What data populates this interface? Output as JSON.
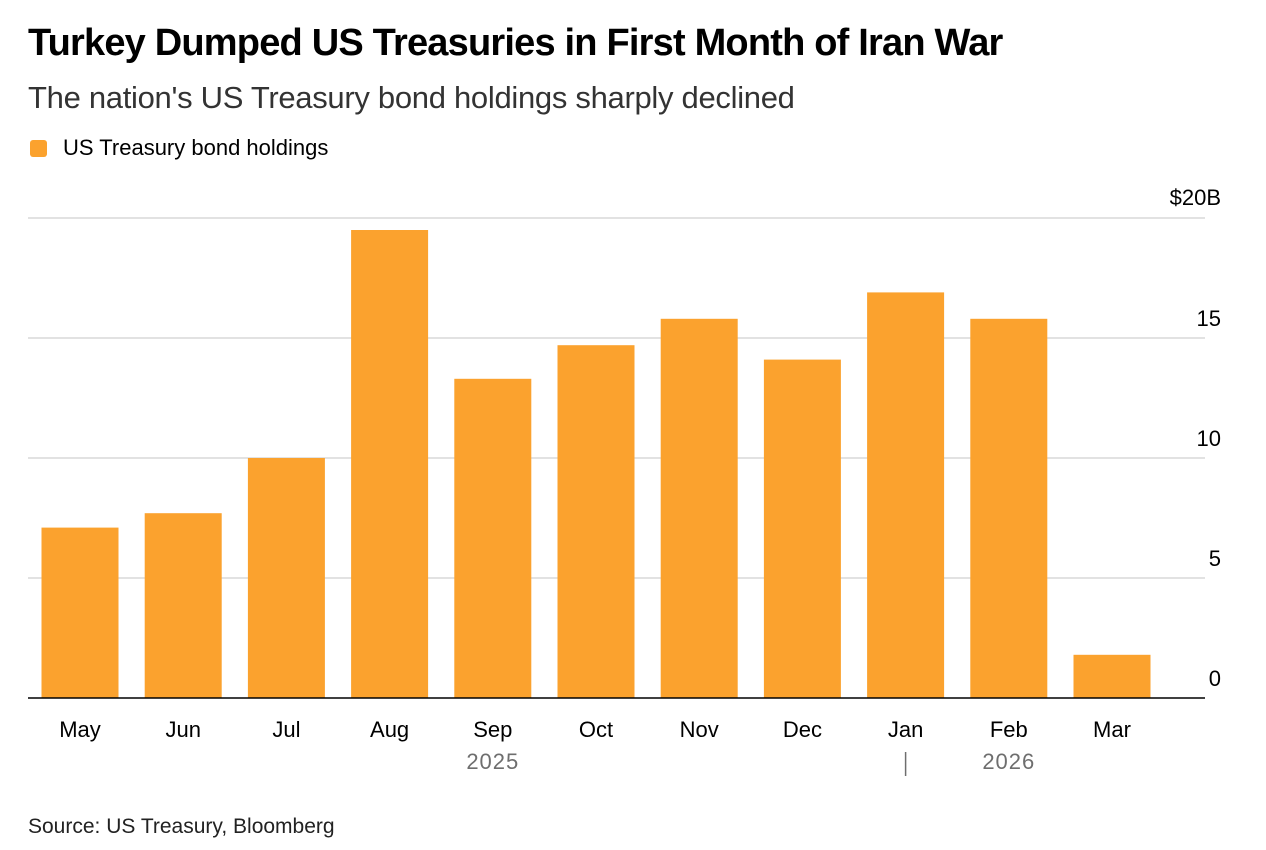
{
  "title": "Turkey Dumped US Treasuries in First Month of Iran War",
  "subtitle": "The nation's US Treasury bond holdings sharply declined",
  "source": "Source: US Treasury, Bloomberg",
  "colors": {
    "bar": "#FBA22E",
    "grid": "#d9d9d9",
    "axis": "#000000",
    "year": "#6e6e6e"
  },
  "chart_data": {
    "type": "bar",
    "categories": [
      "May",
      "Jun",
      "Jul",
      "Aug",
      "Sep",
      "Oct",
      "Nov",
      "Dec",
      "Jan",
      "Feb",
      "Mar"
    ],
    "series": [
      {
        "name": "US Treasury bond holdings",
        "values": [
          7.1,
          7.7,
          10.0,
          19.5,
          13.3,
          14.7,
          15.8,
          14.1,
          16.9,
          15.8,
          1.8
        ]
      }
    ],
    "year_labels": [
      {
        "label": "2025",
        "category": "Sep"
      },
      {
        "label": "2026",
        "category": "Feb"
      }
    ],
    "year_divider_before": "Jan",
    "yticks": [
      {
        "value": 0,
        "label": "0"
      },
      {
        "value": 5,
        "label": "5"
      },
      {
        "value": 10,
        "label": "10"
      },
      {
        "value": 15,
        "label": "15"
      },
      {
        "value": 20,
        "label": "$20B"
      }
    ],
    "ylim": [
      0,
      20
    ],
    "ylabel": "",
    "xlabel": "",
    "grid": true,
    "legend_position": "top-left"
  }
}
